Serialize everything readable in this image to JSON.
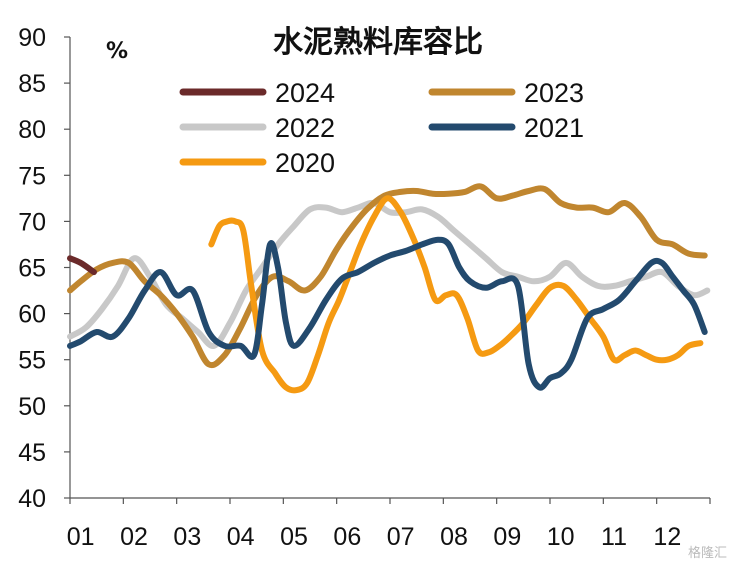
{
  "watermark": "格隆汇",
  "chart_data": {
    "type": "line",
    "title": "水泥熟料库容比",
    "unit": "%",
    "xlabel": "",
    "ylabel": "",
    "ylim": [
      40,
      90
    ],
    "yticks": [
      40,
      45,
      50,
      55,
      60,
      65,
      70,
      75,
      80,
      85,
      90
    ],
    "xlim": [
      1,
      13
    ],
    "xticks": [
      "01",
      "02",
      "03",
      "04",
      "05",
      "06",
      "07",
      "08",
      "09",
      "10",
      "11",
      "12"
    ],
    "grid": false,
    "legend_position": "top",
    "series": [
      {
        "name": "2024",
        "color": "#6b2a2a",
        "x": [
          1.0,
          1.2,
          1.45
        ],
        "y": [
          66,
          65.5,
          64.5
        ]
      },
      {
        "name": "2023",
        "color": "#c0862f",
        "x": [
          1.0,
          1.2,
          1.5,
          1.8,
          2.1,
          2.4,
          2.7,
          3.0,
          3.3,
          3.6,
          3.9,
          4.2,
          4.5,
          4.8,
          5.1,
          5.4,
          5.7,
          6.0,
          6.3,
          6.6,
          6.9,
          7.2,
          7.5,
          7.8,
          8.1,
          8.4,
          8.7,
          9.0,
          9.3,
          9.6,
          9.9,
          10.2,
          10.5,
          10.8,
          11.1,
          11.4,
          11.7,
          12.0,
          12.3,
          12.6,
          12.9
        ],
        "y": [
          62.5,
          63.5,
          64.8,
          65.5,
          65.5,
          63.5,
          62,
          60,
          57.5,
          54.5,
          55.5,
          58.5,
          62,
          64,
          63.5,
          62.5,
          64,
          67,
          69.5,
          71.5,
          72.8,
          73.2,
          73.3,
          73,
          73,
          73.2,
          73.8,
          72.5,
          72.8,
          73.3,
          73.5,
          72,
          71.5,
          71.5,
          71,
          72,
          70.5,
          68,
          67.5,
          66.5,
          66.3
        ]
      },
      {
        "name": "2022",
        "color": "#c8c8c8",
        "x": [
          1.0,
          1.3,
          1.6,
          1.9,
          2.2,
          2.5,
          2.8,
          3.1,
          3.4,
          3.7,
          4.0,
          4.3,
          4.6,
          4.9,
          5.2,
          5.5,
          5.8,
          6.1,
          6.4,
          6.7,
          7.0,
          7.3,
          7.6,
          7.9,
          8.2,
          8.5,
          8.8,
          9.1,
          9.4,
          9.7,
          10.0,
          10.3,
          10.6,
          10.9,
          11.2,
          11.5,
          11.8,
          12.1,
          12.4,
          12.7,
          12.95
        ],
        "y": [
          57.5,
          58.5,
          60.5,
          63,
          66,
          64,
          61,
          59.5,
          58,
          56.5,
          59,
          62.5,
          65,
          67.5,
          69.5,
          71.3,
          71.5,
          71,
          71.5,
          72,
          71,
          71,
          71.3,
          70.5,
          69,
          67.5,
          66,
          64.5,
          64,
          63.5,
          64,
          65.5,
          64,
          63,
          63,
          63.5,
          64,
          64.5,
          63,
          62,
          62.5
        ]
      },
      {
        "name": "2021",
        "color": "#234a6e",
        "x": [
          1.0,
          1.2,
          1.5,
          1.8,
          2.1,
          2.4,
          2.7,
          3.0,
          3.3,
          3.6,
          3.9,
          4.2,
          4.45,
          4.6,
          4.75,
          4.9,
          5.05,
          5.2,
          5.5,
          5.8,
          6.1,
          6.4,
          6.7,
          7.0,
          7.3,
          7.6,
          7.9,
          8.1,
          8.3,
          8.5,
          8.8,
          9.1,
          9.4,
          9.6,
          9.8,
          10.0,
          10.2,
          10.4,
          10.7,
          11.0,
          11.3,
          11.6,
          11.9,
          12.1,
          12.3,
          12.5,
          12.7,
          12.9
        ],
        "y": [
          56.5,
          57,
          58,
          57.5,
          59.5,
          62.5,
          64.5,
          62,
          62.5,
          58,
          56.5,
          56.5,
          55.5,
          61,
          67.5,
          65,
          59,
          56.5,
          58.5,
          61.5,
          63.8,
          64.5,
          65.5,
          66.3,
          66.8,
          67.5,
          68,
          67.5,
          65,
          63.5,
          62.8,
          63.5,
          63,
          54.5,
          52,
          53,
          53.5,
          55,
          59.5,
          60.5,
          61.5,
          63.5,
          65.5,
          65.5,
          64,
          62.5,
          61,
          58
        ]
      },
      {
        "name": "2020",
        "color": "#f59a12",
        "x": [
          3.65,
          3.8,
          3.95,
          4.1,
          4.25,
          4.4,
          4.6,
          4.85,
          5.05,
          5.25,
          5.45,
          5.65,
          5.85,
          6.05,
          6.25,
          6.45,
          6.7,
          6.95,
          7.2,
          7.45,
          7.65,
          7.85,
          8.05,
          8.25,
          8.45,
          8.65,
          8.85,
          9.05,
          9.25,
          9.5,
          9.75,
          10.0,
          10.25,
          10.5,
          10.75,
          11.0,
          11.2,
          11.4,
          11.6,
          11.8,
          12.0,
          12.2,
          12.4,
          12.6,
          12.82
        ],
        "y": [
          67.5,
          69.5,
          70,
          70,
          69,
          63,
          56,
          53.5,
          52,
          51.7,
          52.5,
          55.5,
          59,
          61.5,
          64.5,
          67.5,
          70.5,
          72.5,
          71,
          68,
          65,
          61.5,
          62,
          62,
          59.5,
          56,
          55.8,
          56.5,
          57.5,
          59,
          61,
          62.8,
          63,
          61.5,
          59.5,
          57.5,
          55,
          55.5,
          56,
          55.5,
          55,
          55,
          55.5,
          56.5,
          56.8
        ]
      }
    ]
  }
}
